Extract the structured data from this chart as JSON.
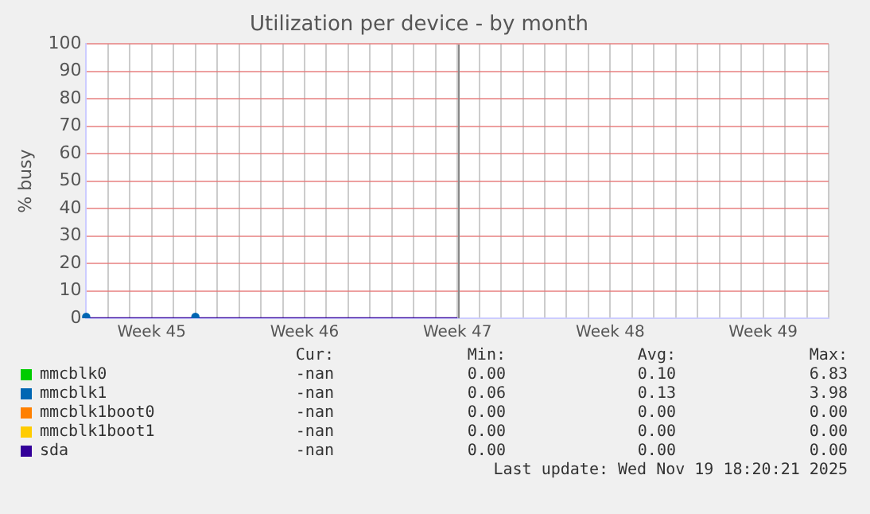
{
  "chart_data": {
    "type": "line",
    "title": "Utilization per device - by month",
    "ylabel": "% busy",
    "categories": [
      null,
      null,
      null,
      "Week 45",
      null,
      null,
      null,
      null,
      null,
      null,
      "Week 46",
      null,
      null,
      null,
      null,
      null,
      null,
      "Week 47",
      null,
      null,
      null,
      null,
      null,
      null,
      "Week 48",
      null,
      null,
      null,
      null,
      null,
      null,
      "Week 49",
      null,
      null,
      null
    ],
    "ylim": [
      0,
      100
    ],
    "yticks": [
      0,
      10,
      20,
      30,
      40,
      50,
      60,
      70,
      80,
      90,
      100
    ],
    "grid": true,
    "legend": "bottom",
    "line_style": "solid",
    "series": [
      {
        "name": "mmcblk0",
        "color": "#00cc00",
        "values": [
          null,
          null,
          null,
          null,
          null,
          null,
          null,
          null,
          null,
          null,
          null,
          null,
          null,
          null,
          null,
          null,
          null,
          null,
          null,
          null,
          null,
          null,
          null,
          null,
          null,
          null,
          null,
          null,
          null,
          null,
          null,
          null,
          null,
          null,
          null
        ]
      },
      {
        "name": "mmcblk1",
        "type": "scatter",
        "color": "#0066b3",
        "values": [
          0.5,
          null,
          null,
          null,
          null,
          0.5,
          null,
          null,
          null,
          null,
          null,
          null,
          null,
          null,
          null,
          null,
          null,
          null,
          null,
          null,
          null,
          null,
          null,
          null,
          null,
          null,
          null,
          null,
          null,
          null,
          null,
          null,
          null,
          null,
          null
        ]
      },
      {
        "name": "mmcblk1boot0",
        "color": "#ff8000",
        "values": [
          null,
          null,
          null,
          null,
          null,
          null,
          null,
          null,
          null,
          null,
          null,
          null,
          null,
          null,
          null,
          null,
          null,
          null,
          null,
          null,
          null,
          null,
          null,
          null,
          null,
          null,
          null,
          null,
          null,
          null,
          null,
          null,
          null,
          null,
          null
        ]
      },
      {
        "name": "mmcblk1boot1",
        "color": "#ffcc00",
        "values": [
          null,
          null,
          null,
          null,
          null,
          null,
          null,
          null,
          null,
          null,
          null,
          null,
          null,
          null,
          null,
          null,
          null,
          null,
          null,
          null,
          null,
          null,
          null,
          null,
          null,
          null,
          null,
          null,
          null,
          null,
          null,
          null,
          null,
          null,
          null
        ]
      },
      {
        "name": "sda",
        "color": "#330099",
        "values": [
          0,
          0,
          0,
          0,
          0,
          0,
          0,
          0,
          0,
          0,
          0,
          0,
          0,
          0,
          0,
          0,
          0,
          0,
          null,
          null,
          null,
          null,
          null,
          null,
          null,
          null,
          null,
          null,
          null,
          null,
          null,
          null,
          null,
          null,
          null
        ]
      }
    ],
    "annotations": [
      "Cur:",
      "Min:",
      "Avg:",
      "Max:",
      "-nan",
      "0.00",
      "0.10",
      "6.83",
      "-nan",
      "0.06",
      "0.13",
      "3.98",
      "-nan",
      "0.00",
      "0.00",
      "0.00",
      "-nan",
      "0.00",
      "0.00",
      "0.00",
      "-nan",
      "0.00",
      "0.00",
      "0.00",
      "Last update: Wed Nov 19 18:20:21 2025"
    ]
  }
}
